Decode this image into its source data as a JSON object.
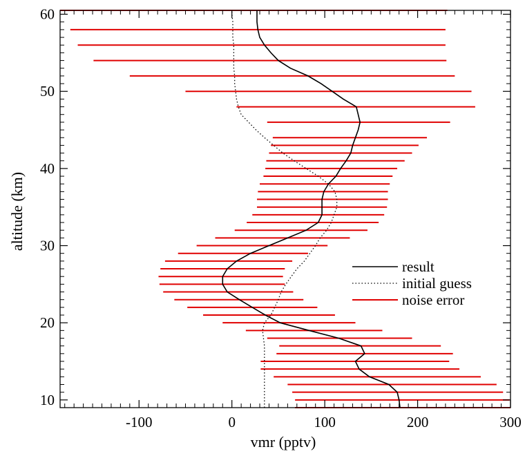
{
  "chart_data": {
    "type": "line",
    "title": "",
    "xlabel": "vmr (pptv)",
    "ylabel": "altitude (km)",
    "xlim": [
      -185,
      300
    ],
    "ylim": [
      9,
      60.5
    ],
    "grid": false,
    "legend_position": "right-middle",
    "x_ticks": [
      -100,
      0,
      100,
      200,
      300
    ],
    "x_tick_labels": [
      "-100",
      "0",
      "100",
      "200",
      "300"
    ],
    "y_ticks": [
      10,
      20,
      30,
      40,
      50,
      60
    ],
    "y_tick_labels": [
      "10",
      "20",
      "30",
      "40",
      "50",
      "60"
    ],
    "colors": {
      "result": "#000000",
      "initial_guess": "#000000",
      "noise_error": "#e00000",
      "axes": "#000000"
    },
    "series": [
      {
        "name": "result",
        "style": "solid",
        "points": [
          [
            181,
            9
          ],
          [
            180,
            10
          ],
          [
            178,
            11
          ],
          [
            169,
            12
          ],
          [
            148,
            13
          ],
          [
            137,
            14
          ],
          [
            133,
            15
          ],
          [
            143,
            16
          ],
          [
            139,
            17
          ],
          [
            115,
            18
          ],
          [
            83,
            19
          ],
          [
            52,
            20
          ],
          [
            36,
            21
          ],
          [
            22,
            22
          ],
          [
            8,
            23
          ],
          [
            -5,
            24
          ],
          [
            -10,
            25
          ],
          [
            -10,
            26
          ],
          [
            -5,
            27
          ],
          [
            5,
            28
          ],
          [
            20,
            29
          ],
          [
            40,
            30
          ],
          [
            60,
            31
          ],
          [
            80,
            32
          ],
          [
            93,
            33
          ],
          [
            97,
            34
          ],
          [
            97,
            35
          ],
          [
            97,
            36
          ],
          [
            99,
            37
          ],
          [
            104,
            38
          ],
          [
            112,
            39
          ],
          [
            117,
            40
          ],
          [
            123,
            41
          ],
          [
            128,
            42
          ],
          [
            130,
            43
          ],
          [
            133,
            44
          ],
          [
            136,
            45
          ],
          [
            138,
            46
          ],
          [
            136,
            47
          ],
          [
            134,
            48
          ],
          [
            120,
            49
          ],
          [
            108,
            50
          ],
          [
            96,
            51
          ],
          [
            82,
            52
          ],
          [
            63,
            53
          ],
          [
            50,
            54
          ],
          [
            42,
            55
          ],
          [
            35,
            56
          ],
          [
            30,
            57
          ],
          [
            28,
            58
          ],
          [
            27,
            59
          ],
          [
            27,
            60
          ],
          [
            27,
            60.5
          ]
        ]
      },
      {
        "name": "initial guess",
        "style": "dotted",
        "points": [
          [
            35,
            9
          ],
          [
            35,
            10
          ],
          [
            35,
            11
          ],
          [
            35,
            12
          ],
          [
            35,
            13
          ],
          [
            35,
            14
          ],
          [
            35,
            15
          ],
          [
            35,
            16
          ],
          [
            35,
            17
          ],
          [
            34,
            18
          ],
          [
            33,
            19
          ],
          [
            35,
            20
          ],
          [
            42,
            21
          ],
          [
            46,
            22
          ],
          [
            50,
            23
          ],
          [
            53,
            24
          ],
          [
            58,
            25
          ],
          [
            64,
            26
          ],
          [
            70,
            27
          ],
          [
            78,
            28
          ],
          [
            84,
            29
          ],
          [
            90,
            30
          ],
          [
            95,
            31
          ],
          [
            102,
            32
          ],
          [
            107,
            33
          ],
          [
            110,
            34
          ],
          [
            113,
            35
          ],
          [
            113,
            36
          ],
          [
            111,
            37
          ],
          [
            104,
            38
          ],
          [
            93,
            39
          ],
          [
            80,
            40
          ],
          [
            67,
            41
          ],
          [
            55,
            42
          ],
          [
            45,
            43
          ],
          [
            35,
            44
          ],
          [
            26,
            45
          ],
          [
            18,
            46
          ],
          [
            10,
            47
          ],
          [
            7,
            48
          ],
          [
            5,
            49
          ],
          [
            4,
            50
          ],
          [
            3,
            51
          ],
          [
            3,
            52
          ],
          [
            2,
            53
          ],
          [
            2,
            54
          ],
          [
            2,
            55
          ],
          [
            2,
            56
          ],
          [
            1,
            57
          ],
          [
            1,
            58
          ],
          [
            1,
            59
          ],
          [
            0,
            60
          ],
          [
            0,
            60.5
          ]
        ]
      },
      {
        "name": "noise error",
        "style": "horizontal-bars",
        "bars": [
          {
            "y": 9,
            "xmin": 68,
            "xmax": 300
          },
          {
            "y": 10,
            "xmin": 68,
            "xmax": 299
          },
          {
            "y": 11,
            "xmin": 65,
            "xmax": 292
          },
          {
            "y": 12,
            "xmin": 60,
            "xmax": 285
          },
          {
            "y": 13,
            "xmin": 45,
            "xmax": 268
          },
          {
            "y": 14,
            "xmin": 31,
            "xmax": 245
          },
          {
            "y": 15,
            "xmin": 31,
            "xmax": 234
          },
          {
            "y": 16,
            "xmin": 48,
            "xmax": 238
          },
          {
            "y": 17,
            "xmin": 51,
            "xmax": 225
          },
          {
            "y": 18,
            "xmin": 38,
            "xmax": 194
          },
          {
            "y": 19,
            "xmin": 15,
            "xmax": 162
          },
          {
            "y": 20,
            "xmin": -10,
            "xmax": 133
          },
          {
            "y": 21,
            "xmin": -31,
            "xmax": 111
          },
          {
            "y": 22,
            "xmin": -48,
            "xmax": 92
          },
          {
            "y": 23,
            "xmin": -62,
            "xmax": 77
          },
          {
            "y": 24,
            "xmin": -74,
            "xmax": 66
          },
          {
            "y": 25,
            "xmin": -78,
            "xmax": 57
          },
          {
            "y": 26,
            "xmin": -79,
            "xmax": 55
          },
          {
            "y": 27,
            "xmin": -77,
            "xmax": 57
          },
          {
            "y": 28,
            "xmin": -72,
            "xmax": 65
          },
          {
            "y": 29,
            "xmin": -58,
            "xmax": 82
          },
          {
            "y": 30,
            "xmin": -38,
            "xmax": 103
          },
          {
            "y": 31,
            "xmin": -18,
            "xmax": 127
          },
          {
            "y": 32,
            "xmin": 3,
            "xmax": 146
          },
          {
            "y": 33,
            "xmin": 16,
            "xmax": 158
          },
          {
            "y": 34,
            "xmin": 22,
            "xmax": 164
          },
          {
            "y": 35,
            "xmin": 27,
            "xmax": 167
          },
          {
            "y": 36,
            "xmin": 27,
            "xmax": 168
          },
          {
            "y": 37,
            "xmin": 28,
            "xmax": 168
          },
          {
            "y": 38,
            "xmin": 30,
            "xmax": 170
          },
          {
            "y": 39,
            "xmin": 34,
            "xmax": 173
          },
          {
            "y": 40,
            "xmin": 36,
            "xmax": 178
          },
          {
            "y": 41,
            "xmin": 37,
            "xmax": 186
          },
          {
            "y": 42,
            "xmin": 40,
            "xmax": 194
          },
          {
            "y": 43,
            "xmin": 42,
            "xmax": 201
          },
          {
            "y": 44,
            "xmin": 44,
            "xmax": 210
          },
          {
            "y": 46,
            "xmin": 38,
            "xmax": 235
          },
          {
            "y": 48,
            "xmin": 5,
            "xmax": 262
          },
          {
            "y": 50,
            "xmin": -50,
            "xmax": 258
          },
          {
            "y": 52,
            "xmin": -110,
            "xmax": 240
          },
          {
            "y": 54,
            "xmin": -149,
            "xmax": 231
          },
          {
            "y": 56,
            "xmin": -166,
            "xmax": 230
          },
          {
            "y": 58,
            "xmin": -174,
            "xmax": 230
          },
          {
            "y": 60.5,
            "xmin": -185,
            "xmax": 232
          }
        ]
      }
    ]
  }
}
